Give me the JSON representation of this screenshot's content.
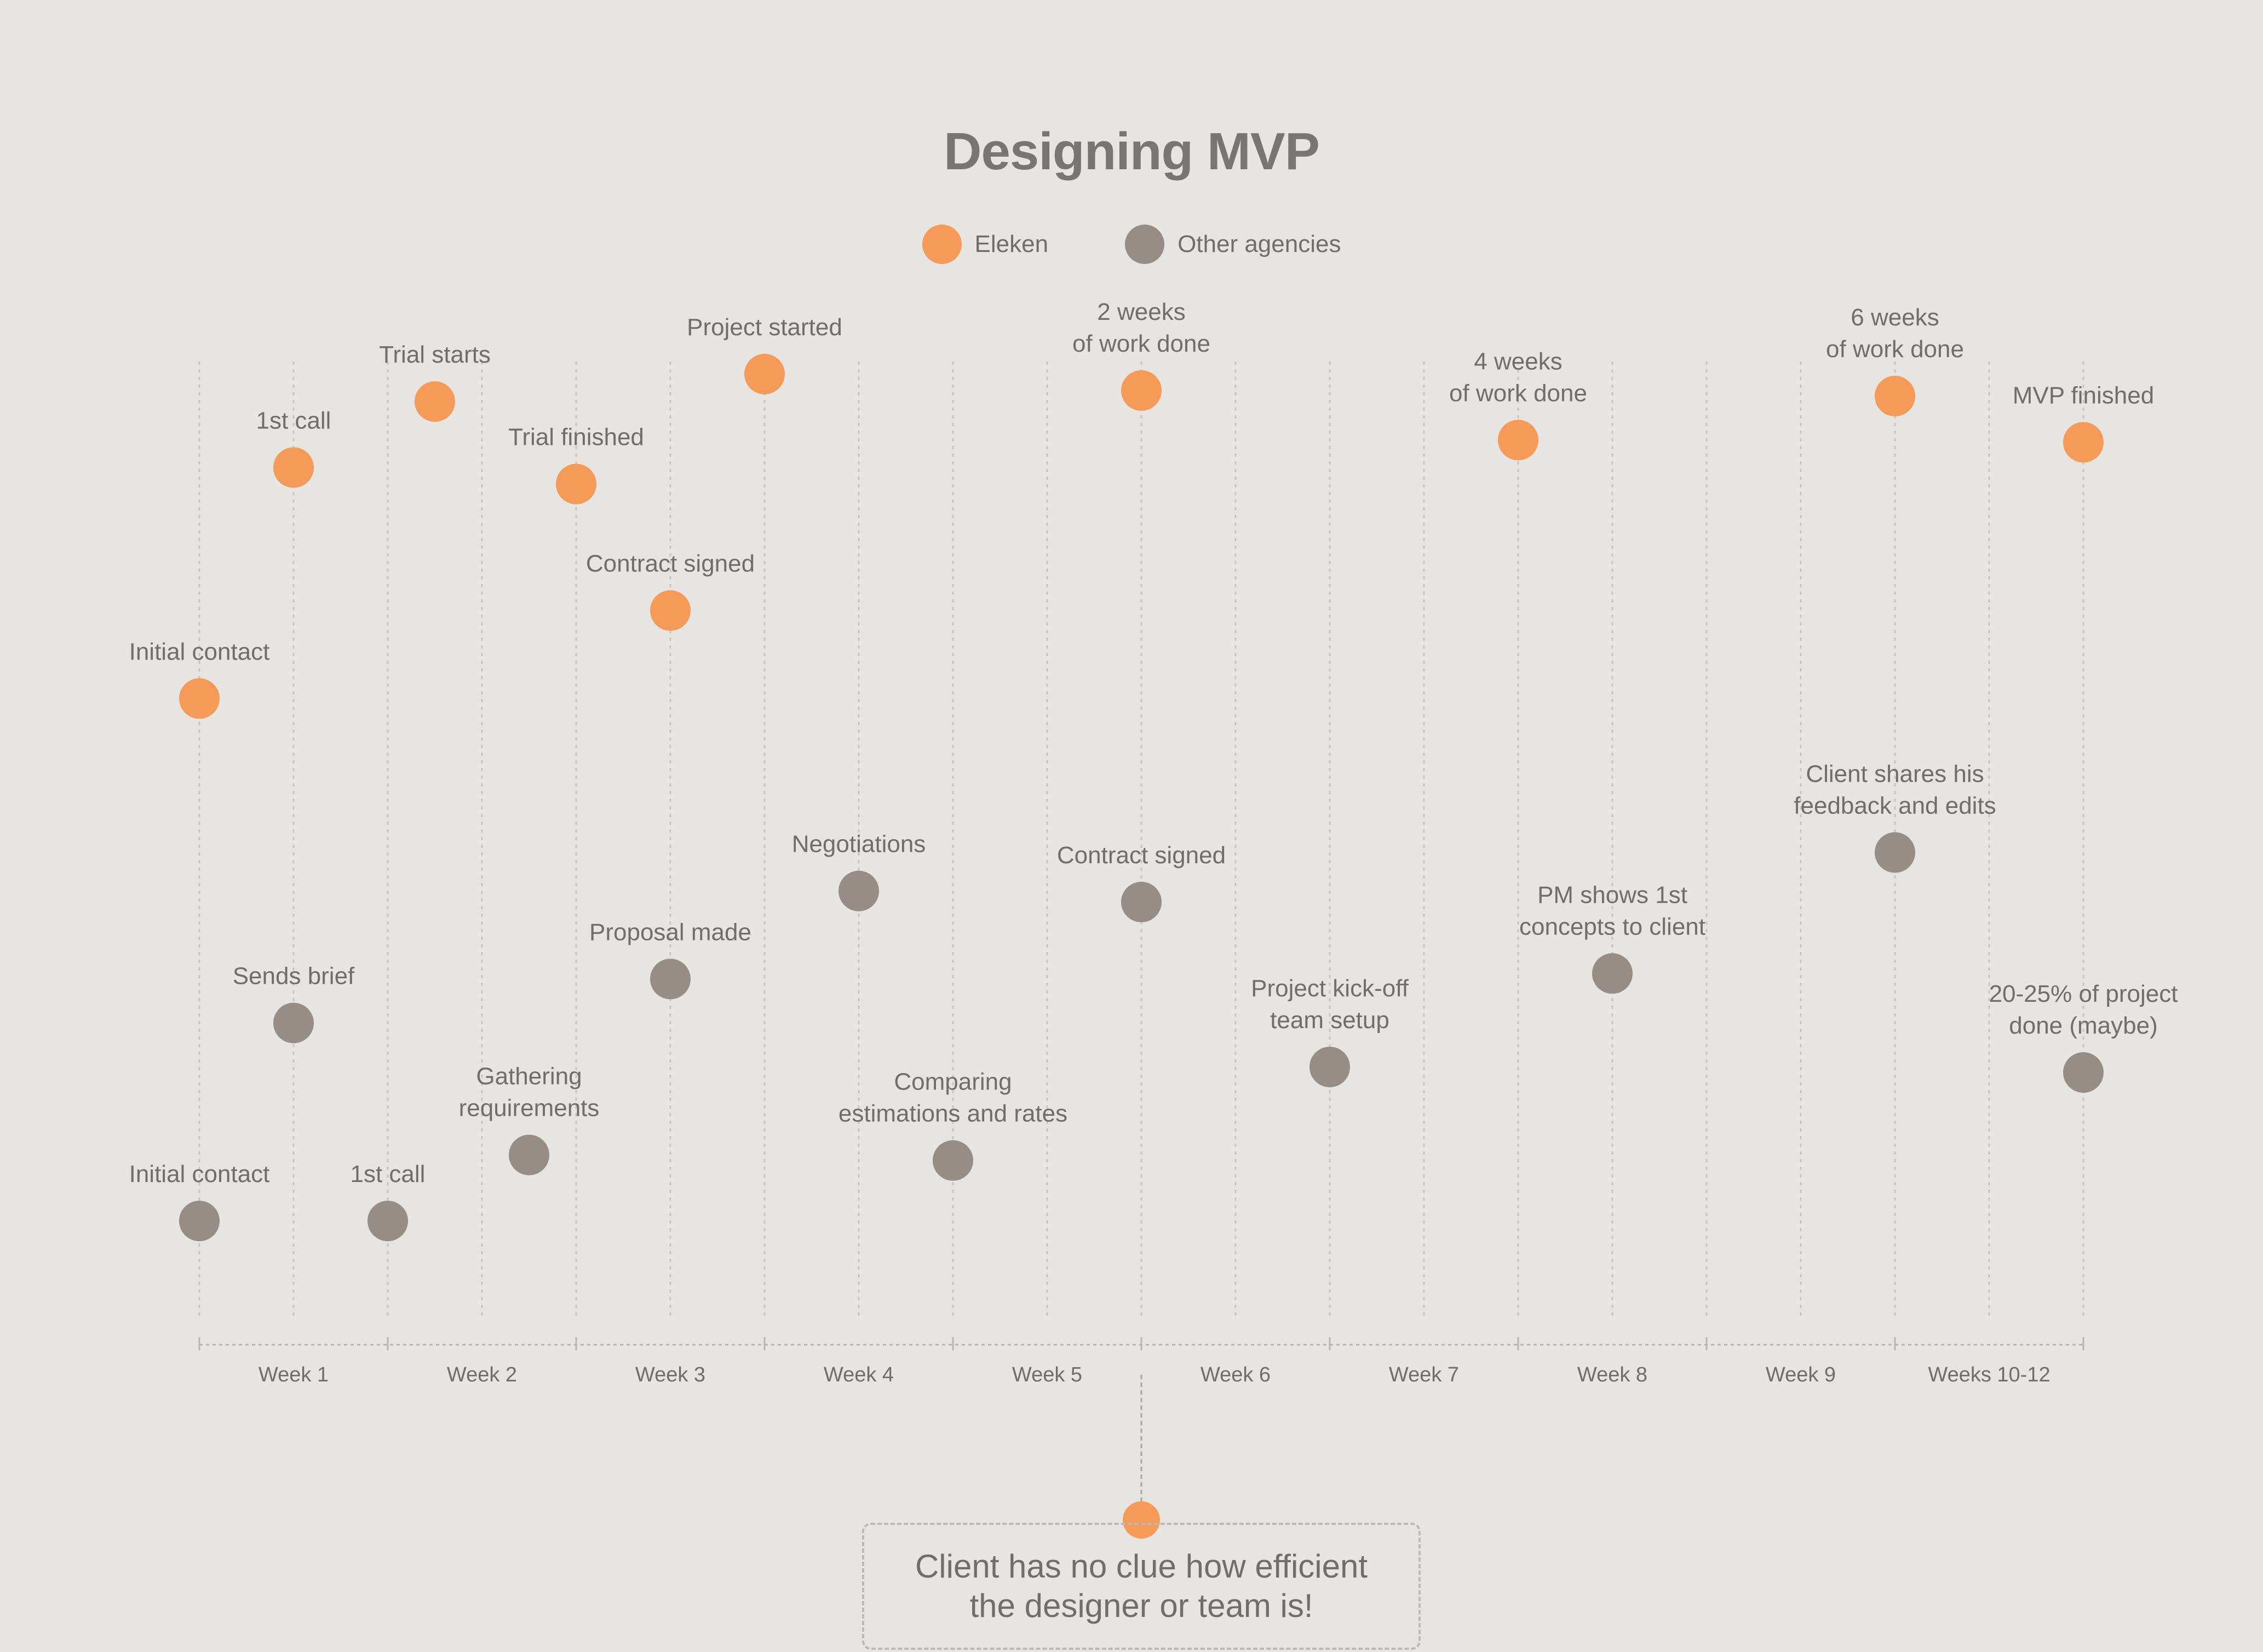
{
  "colors": {
    "background": "#e6e5e2",
    "eleken": "#f59a57",
    "other": "#968d86",
    "text": "#6f6e6a",
    "grid": "#c7c5c0"
  },
  "title": "Designing MVP",
  "legend": [
    {
      "label": "Eleken",
      "color": "#f59a57"
    },
    {
      "label": "Other agencies",
      "color": "#968d86"
    }
  ],
  "callout": {
    "text": "Client has no clue how efficient the designer or team is!",
    "x": 5.0
  },
  "chart_data": {
    "type": "scatter",
    "title": "Designing MVP",
    "x_axis": {
      "range": [
        0,
        10
      ],
      "tick_labels": [
        "Week 1",
        "Week 2",
        "Week 3",
        "Week 4",
        "Week 5",
        "Week 6",
        "Week 7",
        "Week 8",
        "Week 9",
        "Weeks 10-12"
      ],
      "tick_label_positions": [
        0.5,
        1.5,
        2.5,
        3.5,
        4.5,
        5.5,
        6.5,
        7.5,
        8.5,
        9.5
      ]
    },
    "y_axis": {
      "range": [
        0,
        100
      ],
      "visible": false
    },
    "grid": "vertical dotted lines",
    "legend_placement": "top-center",
    "series": [
      {
        "name": "Eleken",
        "color": "#f59a57",
        "points": [
          {
            "x": 0.0,
            "y": 59,
            "label": "Initial contact"
          },
          {
            "x": 0.5,
            "y": 80,
            "label": "1st call"
          },
          {
            "x": 1.25,
            "y": 86,
            "label": "Trial starts"
          },
          {
            "x": 2.0,
            "y": 78.5,
            "label": "Trial finished"
          },
          {
            "x": 2.5,
            "y": 67,
            "label": "Contract signed"
          },
          {
            "x": 3.0,
            "y": 88.5,
            "label": "Project started"
          },
          {
            "x": 5.0,
            "y": 87,
            "label": "2 weeks\nof work done"
          },
          {
            "x": 7.0,
            "y": 82.5,
            "label": "4 weeks\nof work done"
          },
          {
            "x": 9.0,
            "y": 86.5,
            "label": "6 weeks\nof work done"
          },
          {
            "x": 10.0,
            "y": 82.3,
            "label": "MVP finished"
          }
        ]
      },
      {
        "name": "Other agencies",
        "color": "#968d86",
        "points": [
          {
            "x": 0.0,
            "y": 11.5,
            "label": "Initial contact"
          },
          {
            "x": 0.5,
            "y": 29.5,
            "label": "Sends brief"
          },
          {
            "x": 1.0,
            "y": 11.5,
            "label": "1st call"
          },
          {
            "x": 1.75,
            "y": 17.5,
            "label": "Gathering\nrequirements"
          },
          {
            "x": 2.5,
            "y": 33.5,
            "label": "Proposal made"
          },
          {
            "x": 3.5,
            "y": 41.5,
            "label": "Negotiations"
          },
          {
            "x": 4.0,
            "y": 17,
            "label": "Comparing\nestimations and rates"
          },
          {
            "x": 5.0,
            "y": 40.5,
            "label": "Contract signed"
          },
          {
            "x": 6.0,
            "y": 25.5,
            "label": "Project kick-off\nteam setup"
          },
          {
            "x": 7.5,
            "y": 34,
            "label": "PM shows 1st\nconcepts to client"
          },
          {
            "x": 9.0,
            "y": 45,
            "label": "Client shares his\nfeedback and edits"
          },
          {
            "x": 10.0,
            "y": 25,
            "label": "20-25% of project\ndone (maybe)"
          }
        ]
      }
    ]
  }
}
